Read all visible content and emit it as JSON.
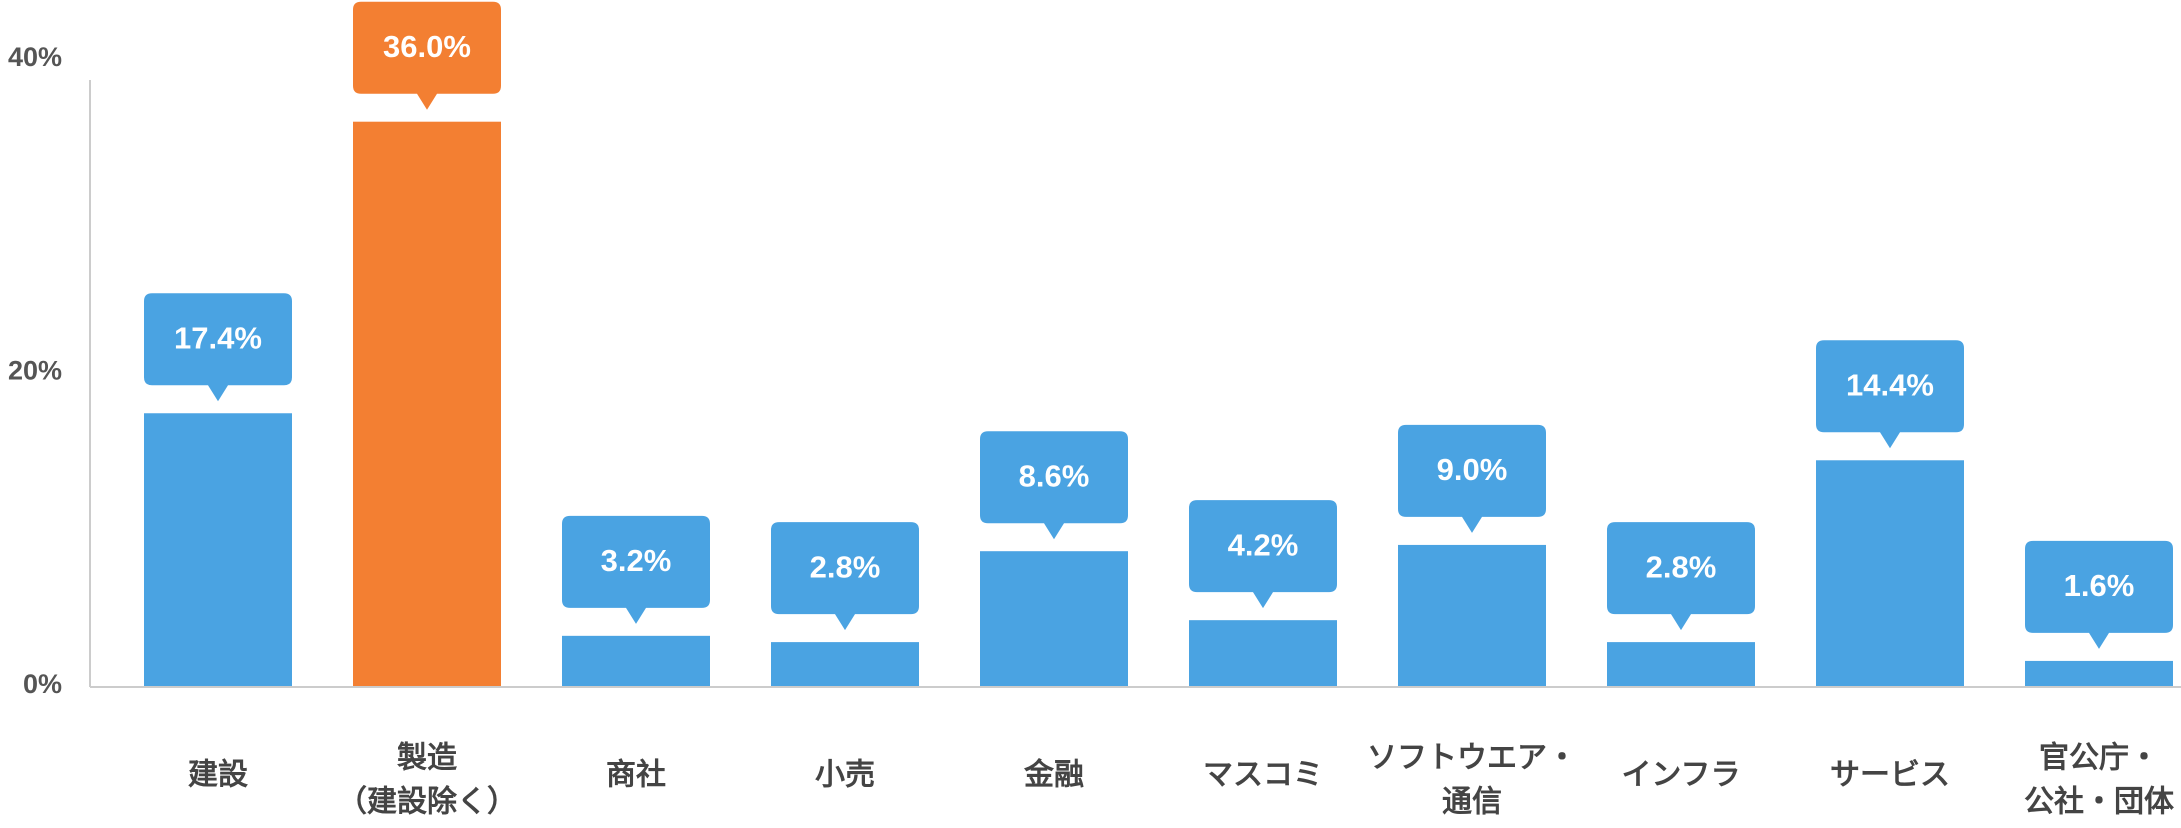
{
  "chart_data": {
    "type": "bar",
    "categories": [
      [
        "建設"
      ],
      [
        "製造",
        "（建設除く）"
      ],
      [
        "商社"
      ],
      [
        "小売"
      ],
      [
        "金融"
      ],
      [
        "マスコミ"
      ],
      [
        "ソフトウエア・",
        "通信"
      ],
      [
        "インフラ"
      ],
      [
        "サービス"
      ],
      [
        "官公庁・",
        "公社・団体"
      ]
    ],
    "values": [
      17.4,
      36.0,
      3.2,
      2.8,
      8.6,
      4.2,
      9.0,
      2.8,
      14.4,
      1.6
    ],
    "value_labels": [
      "17.4%",
      "36.0%",
      "3.2%",
      "2.8%",
      "8.6%",
      "4.2%",
      "9.0%",
      "2.8%",
      "14.4%",
      "1.6%"
    ],
    "colors": [
      "#4aa3e2",
      "#f37f32",
      "#4aa3e2",
      "#4aa3e2",
      "#4aa3e2",
      "#4aa3e2",
      "#4aa3e2",
      "#4aa3e2",
      "#4aa3e2",
      "#4aa3e2"
    ],
    "ylim": [
      0,
      40
    ],
    "yticks": [
      {
        "value": 0,
        "label": "0%"
      },
      {
        "value": 20,
        "label": "20%"
      },
      {
        "value": 40,
        "label": "40%"
      }
    ],
    "grid": false
  }
}
